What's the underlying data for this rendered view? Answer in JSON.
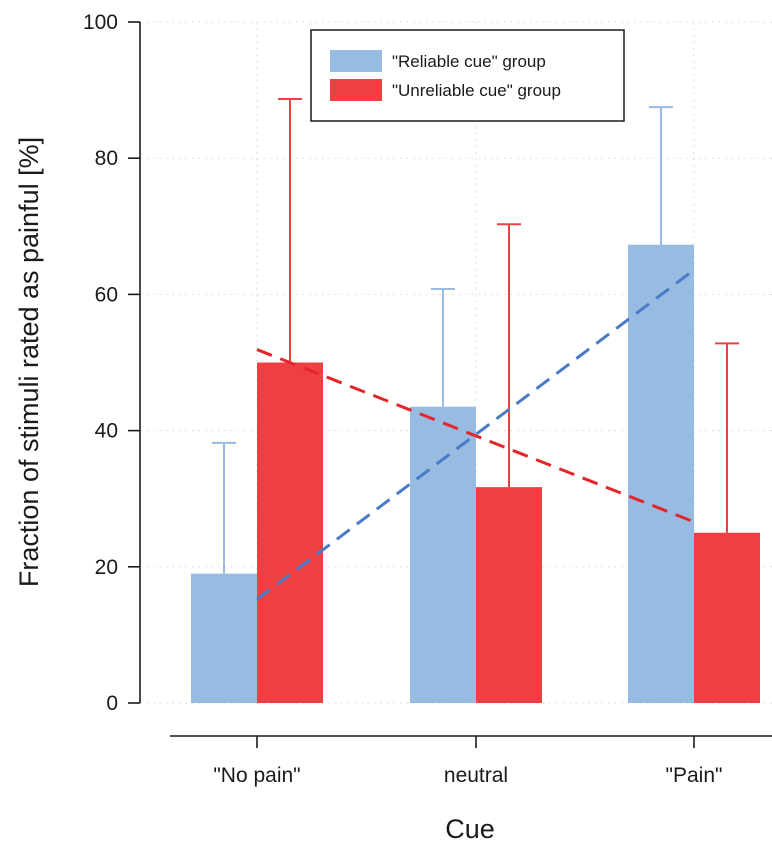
{
  "chart_data": {
    "type": "bar",
    "title": "",
    "xlabel": "Cue",
    "ylabel": "Fraction of stimuli rated as painful [%]",
    "ylim": [
      0,
      100
    ],
    "yticks": [
      0,
      20,
      40,
      60,
      80,
      100
    ],
    "categories": [
      "\"No pain\"",
      "neutral",
      "\"Pain\""
    ],
    "grid": true,
    "legend_position": "top-center",
    "series": [
      {
        "name": "\"Reliable cue\" group",
        "color": "#98bbe2",
        "values": [
          19,
          43.5,
          67.3
        ],
        "error_upper": [
          38.2,
          60.8,
          87.5
        ],
        "trend": [
          15.2,
          63.6
        ]
      },
      {
        "name": "\"Unreliable cue\" group",
        "color": "#ee4042",
        "values": [
          50,
          31.7,
          25
        ],
        "error_upper": [
          88.7,
          70.3,
          52.8
        ],
        "trend": [
          51.9,
          26.6
        ]
      }
    ],
    "trend_line_colors": [
      "#4a7bc8",
      "#e3262b"
    ]
  }
}
